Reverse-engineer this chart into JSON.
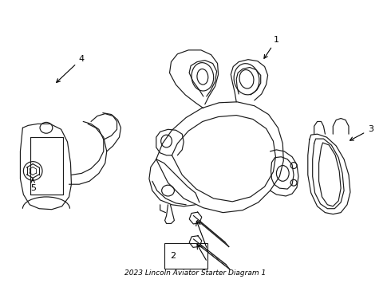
{
  "title": "2023 Lincoln Aviator Starter Diagram 1",
  "background_color": "#ffffff",
  "line_color": "#1a1a1a",
  "label_color": "#000000",
  "fig_width": 4.9,
  "fig_height": 3.6,
  "dpi": 100,
  "label_fontsize": 8,
  "arrow_color": "#000000",
  "lw": 0.85
}
